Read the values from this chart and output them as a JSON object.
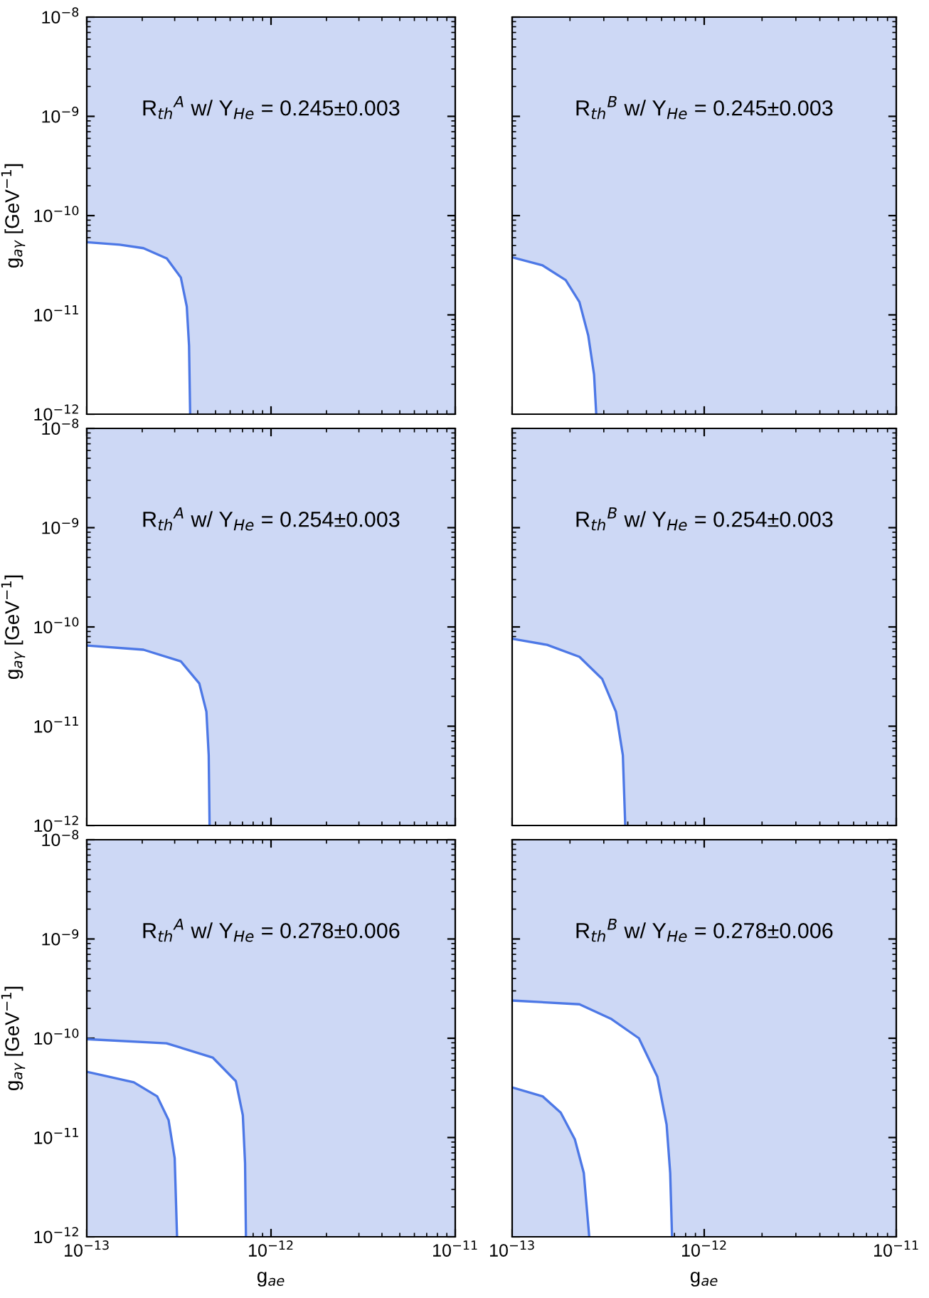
{
  "chart_data": [
    {
      "type": "area",
      "ylabel": "g$_{aγ}$ [GeV$^{−1}$]",
      "log": "xy",
      "grid": false,
      "tick_labels": "y",
      "annotations": [
        "R$_{th}$$^{A}$ w/ Y$_{He}$ = 0.245±0.003"
      ],
      "xlim": [
        1e-13,
        1e-11
      ],
      "ylim": [
        1e-12,
        1e-08
      ],
      "xticks": [
        {
          "value": 1e-13,
          "label": null
        },
        {
          "value": 1e-12,
          "label": null
        },
        {
          "value": 1e-11,
          "label": null
        }
      ],
      "yticks": [
        {
          "value": 1e-12,
          "label": "10$^{−12}$"
        },
        {
          "value": 1e-11,
          "label": "10$^{−11}$"
        },
        {
          "value": 1e-10,
          "label": "10$^{−10}$"
        },
        {
          "value": 1e-09,
          "label": "10$^{−9}$"
        },
        {
          "value": 1e-08,
          "label": "10$^{−8}$"
        }
      ],
      "bands": [
        {
          "axis": "y",
          "from": 1e-12,
          "to": 1e-08,
          "color": "#cdd8f5"
        }
      ],
      "series": [
        {
          "color": "#4d78e6",
          "x": [
            1e-13,
            1.51e-13,
            2.03e-13,
            2.72e-13,
            3.24e-13,
            3.49e-13,
            3.59e-13,
            3.64e-13
          ],
          "values": [
            5.4e-11,
            5.1e-11,
            4.7e-11,
            3.7e-11,
            2.38e-11,
            1.21e-11,
            4.9e-12,
            1e-12
          ]
        }
      ]
    },
    {
      "type": "area",
      "log": "xy",
      "grid": false,
      "tick_labels": false,
      "annotations": [
        "R$_{th}$$^{B}$ w/ Y$_{He}$ = 0.245±0.003"
      ],
      "xlim": [
        1e-13,
        1e-11
      ],
      "ylim": [
        1e-12,
        1e-08
      ],
      "xticks": [
        {
          "value": 1e-13,
          "label": null
        },
        {
          "value": 1e-12,
          "label": null
        },
        {
          "value": 1e-11,
          "label": null
        }
      ],
      "yticks": [
        {
          "value": 1e-12,
          "label": null
        },
        {
          "value": 1e-11,
          "label": null
        },
        {
          "value": 1e-10,
          "label": null
        },
        {
          "value": 1e-09,
          "label": null
        },
        {
          "value": 1e-08,
          "label": null
        }
      ],
      "bands": [
        {
          "axis": "y",
          "from": 1e-12,
          "to": 1e-08,
          "color": "#cdd8f5"
        }
      ],
      "series": [
        {
          "color": "#4d78e6",
          "x": [
            1e-13,
            1.44e-13,
            1.9e-13,
            2.24e-13,
            2.49e-13,
            2.67e-13,
            2.74e-13
          ],
          "values": [
            3.8e-11,
            3.15e-11,
            2.24e-11,
            1.35e-11,
            6.2e-12,
            2.5e-12,
            1e-12
          ]
        }
      ]
    },
    {
      "type": "area",
      "ylabel": "g$_{aγ}$ [GeV$^{−1}$]",
      "log": "xy",
      "grid": false,
      "tick_labels": "y",
      "annotations": [
        "R$_{th}$$^{A}$ w/ Y$_{He}$ = 0.254±0.003"
      ],
      "xlim": [
        1e-13,
        1e-11
      ],
      "ylim": [
        1e-12,
        1e-08
      ],
      "xticks": [
        {
          "value": 1e-13,
          "label": null
        },
        {
          "value": 1e-12,
          "label": null
        },
        {
          "value": 1e-11,
          "label": null
        }
      ],
      "yticks": [
        {
          "value": 1e-12,
          "label": "10$^{−12}$"
        },
        {
          "value": 1e-11,
          "label": "10$^{−11}$"
        },
        {
          "value": 1e-10,
          "label": "10$^{−10}$"
        },
        {
          "value": 1e-09,
          "label": "10$^{−9}$"
        },
        {
          "value": 1e-08,
          "label": "10$^{−8}$"
        }
      ],
      "bands": [
        {
          "axis": "y",
          "from": 1e-12,
          "to": 1e-08,
          "color": "#cdd8f5"
        }
      ],
      "series": [
        {
          "color": "#4d78e6",
          "x": [
            1e-13,
            2.03e-13,
            3.24e-13,
            4.08e-13,
            4.46e-13,
            4.59e-13,
            4.64e-13
          ],
          "values": [
            6.5e-11,
            5.9e-11,
            4.5e-11,
            2.7e-11,
            1.4e-11,
            5.1e-12,
            1e-12
          ]
        }
      ]
    },
    {
      "type": "area",
      "log": "xy",
      "grid": false,
      "tick_labels": false,
      "annotations": [
        "R$_{th}$$^{B}$ w/ Y$_{He}$ = 0.254±0.003"
      ],
      "xlim": [
        1e-13,
        1e-11
      ],
      "ylim": [
        1e-12,
        1e-08
      ],
      "xticks": [
        {
          "value": 1e-13,
          "label": null
        },
        {
          "value": 1e-12,
          "label": null
        },
        {
          "value": 1e-11,
          "label": null
        }
      ],
      "yticks": [
        {
          "value": 1e-12,
          "label": null
        },
        {
          "value": 1e-11,
          "label": null
        },
        {
          "value": 1e-10,
          "label": null
        },
        {
          "value": 1e-09,
          "label": null
        },
        {
          "value": 1e-08,
          "label": null
        }
      ],
      "bands": [
        {
          "axis": "y",
          "from": 1e-12,
          "to": 1e-08,
          "color": "#cdd8f5"
        }
      ],
      "series": [
        {
          "color": "#4d78e6",
          "x": [
            1e-13,
            1.52e-13,
            2.24e-13,
            2.94e-13,
            3.47e-13,
            3.77e-13,
            3.88e-13
          ],
          "values": [
            7.6e-11,
            6.6e-11,
            5e-11,
            3e-11,
            1.4e-11,
            5.1e-12,
            1e-12
          ]
        }
      ]
    },
    {
      "type": "area",
      "xlabel": "g$_{ae}$",
      "ylabel": "g$_{aγ}$ [GeV$^{−1}$]",
      "log": "xy",
      "grid": false,
      "annotations": [
        "R$_{th}$$^{A}$ w/ Y$_{He}$ = 0.278±0.006"
      ],
      "xlim": [
        1e-13,
        1e-11
      ],
      "ylim": [
        1e-12,
        1e-08
      ],
      "xticks": [
        {
          "value": 1e-13,
          "label": "10$^{−13}$"
        },
        {
          "value": 1e-12,
          "label": "10$^{−12}$"
        },
        {
          "value": 1e-11,
          "label": "10$^{−11}$"
        }
      ],
      "yticks": [
        {
          "value": 1e-12,
          "label": "10$^{−12}$"
        },
        {
          "value": 1e-11,
          "label": "10$^{−11}$"
        },
        {
          "value": 1e-10,
          "label": "10$^{−10}$"
        },
        {
          "value": 1e-09,
          "label": "10$^{−9}$"
        },
        {
          "value": 1e-08,
          "label": "10$^{−8}$"
        }
      ],
      "bands": [
        {
          "axis": "y",
          "from": 1e-12,
          "to": 1e-08,
          "color": "#cdd8f5"
        }
      ],
      "series": [
        {
          "color": "#4d78e6",
          "x": [
            1e-13,
            2.71e-13,
            4.82e-13,
            6.44e-13,
            7.03e-13,
            7.23e-13,
            7.31e-13
          ],
          "values": [
            9.8e-11,
            8.9e-11,
            6.4e-11,
            3.7e-11,
            1.68e-11,
            5.5e-12,
            1e-12
          ]
        },
        {
          "color": "#4d78e6",
          "x": [
            1e-13,
            1.8e-13,
            2.41e-13,
            2.78e-13,
            3e-13,
            3.09e-13
          ],
          "values": [
            4.6e-11,
            3.6e-11,
            2.6e-11,
            1.5e-11,
            6.2e-12,
            1e-12
          ]
        }
      ]
    },
    {
      "type": "area",
      "xlabel": "g$_{ae}$",
      "log": "xy",
      "grid": false,
      "tick_labels": "x",
      "annotations": [
        "R$_{th}$$^{B}$ w/ Y$_{He}$ = 0.278±0.006"
      ],
      "xlim": [
        1e-13,
        1e-11
      ],
      "ylim": [
        1e-12,
        1e-08
      ],
      "xticks": [
        {
          "value": 1e-13,
          "label": "10$^{−13}$"
        },
        {
          "value": 1e-12,
          "label": "10$^{−12}$"
        },
        {
          "value": 1e-11,
          "label": "10$^{−11}$"
        }
      ],
      "yticks": [
        {
          "value": 1e-12,
          "label": null
        },
        {
          "value": 1e-11,
          "label": null
        },
        {
          "value": 1e-10,
          "label": null
        },
        {
          "value": 1e-09,
          "label": null
        },
        {
          "value": 1e-08,
          "label": null
        }
      ],
      "bands": [
        {
          "axis": "y",
          "from": 1e-12,
          "to": 1e-08,
          "color": "#cdd8f5"
        }
      ],
      "series": [
        {
          "color": "#4d78e6",
          "x": [
            1e-13,
            2.24e-13,
            3.29e-13,
            4.57e-13,
            5.7e-13,
            6.37e-13,
            6.65e-13,
            6.8e-13
          ],
          "values": [
            2.4e-10,
            2.2e-10,
            1.56e-10,
            1e-10,
            4.1e-11,
            1.35e-11,
            4.4e-12,
            1e-12
          ]
        },
        {
          "color": "#4d78e6",
          "x": [
            1e-13,
            1.44e-13,
            1.79e-13,
            2.12e-13,
            2.36e-13,
            2.52e-13
          ],
          "values": [
            3.2e-11,
            2.6e-11,
            1.78e-11,
            9.6e-12,
            4.4e-12,
            1e-12
          ]
        }
      ]
    }
  ]
}
